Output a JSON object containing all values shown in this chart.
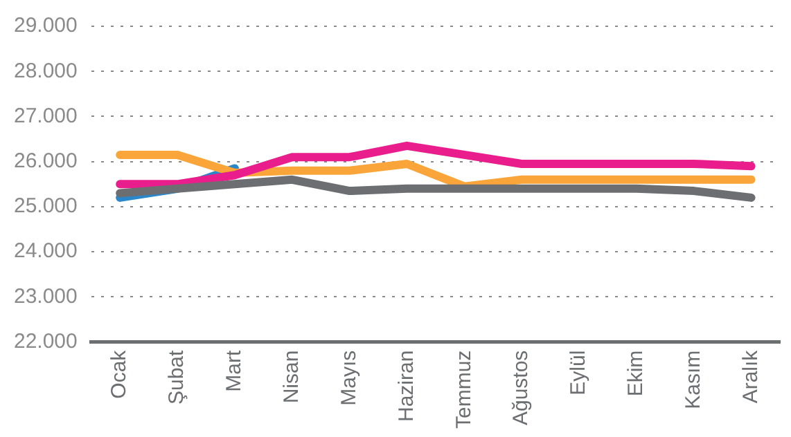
{
  "chart_data": {
    "type": "line",
    "categories": [
      "Ocak",
      "Şubat",
      "Mart",
      "Nisan",
      "Mayıs",
      "Haziran",
      "Temmuz",
      "Ağustos",
      "Eylül",
      "Ekim",
      "Kasım",
      "Aralık"
    ],
    "series": [
      {
        "color": "#6d6e71",
        "values": [
          25300,
          25400,
          25500,
          25600,
          25350,
          25400,
          25400,
          25400,
          25400,
          25400,
          25350,
          25200
        ]
      },
      {
        "color": "#e91e8c",
        "values": [
          25500,
          25500,
          25700,
          26100,
          26100,
          26350,
          26150,
          25950,
          25950,
          25950,
          25950,
          25900
        ]
      },
      {
        "color": "#f9a53a",
        "values": [
          26150,
          26150,
          25750,
          25800,
          25800,
          25950,
          25450,
          25600,
          25600,
          25600,
          25600,
          25600
        ]
      },
      {
        "color": "#2a87c9",
        "values": [
          25200,
          25400,
          25850,
          null,
          null,
          null,
          null,
          null,
          null,
          null,
          null,
          null
        ]
      }
    ],
    "ylim": [
      22000,
      29000
    ],
    "yticks": [
      {
        "value": 22000,
        "label": "22.000"
      },
      {
        "value": 23000,
        "label": "23.000"
      },
      {
        "value": 24000,
        "label": "24.000"
      },
      {
        "value": 25000,
        "label": "25.000"
      },
      {
        "value": 26000,
        "label": "26.000"
      },
      {
        "value": 27000,
        "label": "27.000"
      },
      {
        "value": 28000,
        "label": "28.000"
      },
      {
        "value": 29000,
        "label": "29.000"
      }
    ],
    "grid": "y",
    "legend": false,
    "marker": "none",
    "line_style": "solid"
  }
}
